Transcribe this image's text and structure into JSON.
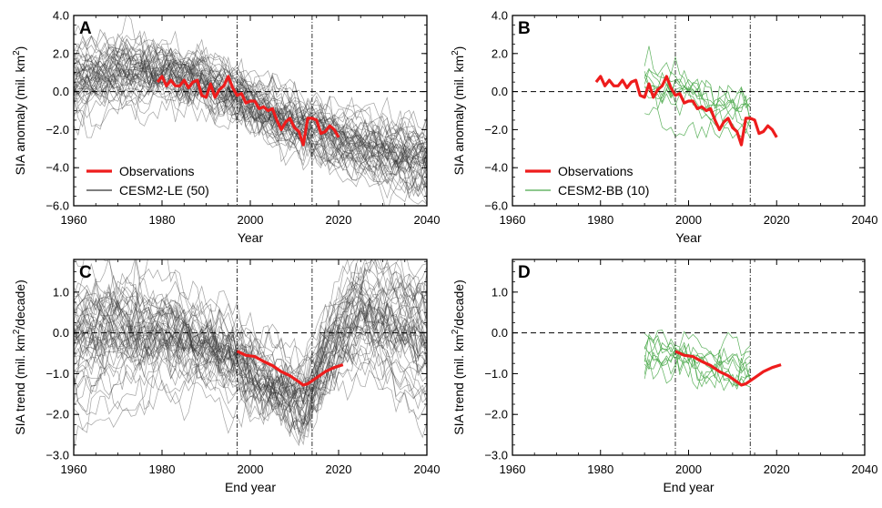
{
  "chart_data": [
    {
      "panel": "A",
      "type": "line",
      "xlabel": "Year",
      "ylabel_pre": "SIA anomaly (mil. km",
      "ylabel_sup": "2",
      "ylabel_post": ")",
      "xlim": [
        1960,
        2040
      ],
      "ylim": [
        -6.0,
        4.0
      ],
      "xticks": [
        1960,
        1980,
        2000,
        2020,
        2040
      ],
      "xtick_labels": [
        "1960",
        "1980",
        "2000",
        "2020",
        "2040"
      ],
      "yticks": [
        4.0,
        2.0,
        0.0,
        -2.0,
        -4.0,
        -6.0
      ],
      "ytick_labels": [
        "4.0",
        "2.0",
        "0.0",
        "−2.0",
        "−4.0",
        "−6.0"
      ],
      "vlines": [
        1997,
        2014
      ],
      "hline": 0,
      "legend_location": "bottom-left",
      "legend": [
        "Observations",
        "CESM2-LE (50)"
      ],
      "ensemble_color": "#333333",
      "obs_color": "#ee1c1c",
      "ensemble": {
        "name": "CESM2-LE (50)",
        "members": 50,
        "x_range": [
          1960,
          2040
        ],
        "mean": [
          [
            1960,
            0.5
          ],
          [
            1970,
            1.1
          ],
          [
            1980,
            0.9
          ],
          [
            1990,
            0.4
          ],
          [
            1995,
            0.0
          ],
          [
            2000,
            -0.8
          ],
          [
            2010,
            -1.8
          ],
          [
            2020,
            -2.6
          ],
          [
            2030,
            -3.3
          ],
          [
            2040,
            -3.8
          ]
        ],
        "spread": 1.0
      },
      "observations": {
        "name": "Observations",
        "x": [
          1979,
          1980,
          1981,
          1982,
          1983,
          1984,
          1985,
          1986,
          1987,
          1988,
          1989,
          1990,
          1991,
          1992,
          1993,
          1994,
          1995,
          1996,
          1997,
          1998,
          1999,
          2000,
          2001,
          2002,
          2003,
          2004,
          2005,
          2006,
          2007,
          2008,
          2009,
          2010,
          2011,
          2012,
          2013,
          2014,
          2015,
          2016,
          2017,
          2018,
          2019,
          2020
        ],
        "y": [
          0.5,
          0.8,
          0.3,
          0.6,
          0.3,
          0.3,
          0.6,
          0.2,
          0.5,
          0.6,
          -0.2,
          -0.3,
          0.4,
          -0.3,
          0.1,
          0.3,
          0.8,
          0.2,
          -0.2,
          -0.1,
          -0.6,
          -0.5,
          -0.5,
          -0.9,
          -0.8,
          -1.0,
          -0.9,
          -1.5,
          -2.0,
          -1.6,
          -1.4,
          -1.9,
          -2.1,
          -2.8,
          -1.4,
          -1.4,
          -1.5,
          -2.2,
          -2.1,
          -1.8,
          -2.0,
          -2.4
        ]
      }
    },
    {
      "panel": "B",
      "type": "line",
      "xlabel": "Year",
      "ylabel_pre": "SIA anomaly (mil. km",
      "ylabel_sup": "2",
      "ylabel_post": ")",
      "xlim": [
        1960,
        2040
      ],
      "ylim": [
        -6.0,
        4.0
      ],
      "xticks": [
        1960,
        1980,
        2000,
        2020,
        2040
      ],
      "xtick_labels": [
        "1960",
        "1980",
        "2000",
        "2020",
        "2040"
      ],
      "yticks": [
        4.0,
        2.0,
        0.0,
        -2.0,
        -4.0,
        -6.0
      ],
      "ytick_labels": [
        "4.0",
        "2.0",
        "0.0",
        "−2.0",
        "−4.0",
        "−6.0"
      ],
      "vlines": [
        1997,
        2014
      ],
      "hline": 0,
      "legend_location": "bottom-left",
      "legend": [
        "Observations",
        "CESM2-BB (10)"
      ],
      "ensemble_color": "#4aa84a",
      "obs_color": "#ee1c1c",
      "ensemble": {
        "name": "CESM2-BB (10)",
        "members": 10,
        "x_range": [
          1990,
          2014
        ],
        "mean": [
          [
            1990,
            0.0
          ],
          [
            1997,
            -0.3
          ],
          [
            2005,
            -1.0
          ],
          [
            2014,
            -1.8
          ]
        ],
        "spread": 0.9
      },
      "observations": {
        "name": "Observations",
        "x": [
          1979,
          1980,
          1981,
          1982,
          1983,
          1984,
          1985,
          1986,
          1987,
          1988,
          1989,
          1990,
          1991,
          1992,
          1993,
          1994,
          1995,
          1996,
          1997,
          1998,
          1999,
          2000,
          2001,
          2002,
          2003,
          2004,
          2005,
          2006,
          2007,
          2008,
          2009,
          2010,
          2011,
          2012,
          2013,
          2014,
          2015,
          2016,
          2017,
          2018,
          2019,
          2020
        ],
        "y": [
          0.5,
          0.8,
          0.3,
          0.6,
          0.3,
          0.3,
          0.6,
          0.2,
          0.5,
          0.6,
          -0.2,
          -0.3,
          0.4,
          -0.3,
          0.1,
          0.3,
          0.8,
          0.2,
          -0.2,
          -0.1,
          -0.6,
          -0.5,
          -0.5,
          -0.9,
          -0.8,
          -1.0,
          -0.9,
          -1.5,
          -2.0,
          -1.6,
          -1.4,
          -1.9,
          -2.1,
          -2.8,
          -1.4,
          -1.4,
          -1.5,
          -2.2,
          -2.1,
          -1.8,
          -2.0,
          -2.4
        ]
      }
    },
    {
      "panel": "C",
      "type": "line",
      "xlabel": "End year",
      "ylabel_pre": "SIA trend (mil. km",
      "ylabel_sup": "2",
      "ylabel_post": "/decade)",
      "xlim": [
        1960,
        2040
      ],
      "ylim": [
        -3.0,
        1.8
      ],
      "xticks": [
        1960,
        1980,
        2000,
        2020,
        2040
      ],
      "xtick_labels": [
        "1960",
        "1980",
        "2000",
        "2020",
        "2040"
      ],
      "yticks": [
        1.0,
        0.0,
        -1.0,
        -2.0,
        -3.0
      ],
      "ytick_labels": [
        "1.0",
        "0.0",
        "−1.0",
        "−2.0",
        "−3.0"
      ],
      "vlines": [
        1997,
        2014
      ],
      "hline": 0,
      "ensemble_color": "#333333",
      "obs_color": "#ee1c1c",
      "ensemble": {
        "members": 50,
        "x_range": [
          1960,
          2040
        ],
        "mean": [
          [
            1960,
            0.0
          ],
          [
            1968,
            0.25
          ],
          [
            1975,
            0.2
          ],
          [
            1985,
            -0.1
          ],
          [
            1995,
            -0.5
          ],
          [
            2005,
            -1.4
          ],
          [
            2012,
            -1.7
          ],
          [
            2020,
            -0.2
          ],
          [
            2025,
            0.3
          ],
          [
            2032,
            0.0
          ],
          [
            2040,
            -0.5
          ]
        ],
        "spread": 0.6
      },
      "observations": {
        "x": [
          1997,
          1999,
          2001,
          2003,
          2005,
          2007,
          2009,
          2011,
          2012,
          2013,
          2015,
          2017,
          2019,
          2021
        ],
        "y": [
          -0.45,
          -0.55,
          -0.58,
          -0.7,
          -0.8,
          -0.95,
          -1.05,
          -1.2,
          -1.28,
          -1.25,
          -1.1,
          -0.95,
          -0.85,
          -0.78
        ]
      }
    },
    {
      "panel": "D",
      "type": "line",
      "xlabel": "End year",
      "ylabel_pre": "SIA trend (mil. km",
      "ylabel_sup": "2",
      "ylabel_post": "/decade)",
      "xlim": [
        1960,
        2040
      ],
      "ylim": [
        -3.0,
        1.8
      ],
      "xticks": [
        1960,
        1980,
        2000,
        2020,
        2040
      ],
      "xtick_labels": [
        "1960",
        "1980",
        "2000",
        "2020",
        "2040"
      ],
      "yticks": [
        1.0,
        0.0,
        -1.0,
        -2.0,
        -3.0
      ],
      "ytick_labels": [
        "1.0",
        "0.0",
        "−1.0",
        "−2.0",
        "−3.0"
      ],
      "vlines": [
        1997,
        2014
      ],
      "hline": 0,
      "ensemble_color": "#4aa84a",
      "obs_color": "#ee1c1c",
      "ensemble": {
        "members": 10,
        "x_range": [
          1990,
          2014
        ],
        "mean": [
          [
            1990,
            -0.7
          ],
          [
            1997,
            -0.6
          ],
          [
            2005,
            -0.8
          ],
          [
            2014,
            -0.9
          ]
        ],
        "spread": 0.5
      },
      "observations": {
        "x": [
          1997,
          1999,
          2001,
          2003,
          2005,
          2007,
          2009,
          2011,
          2012,
          2013,
          2015,
          2017,
          2019,
          2021
        ],
        "y": [
          -0.45,
          -0.55,
          -0.58,
          -0.7,
          -0.8,
          -0.95,
          -1.05,
          -1.2,
          -1.28,
          -1.25,
          -1.1,
          -0.95,
          -0.85,
          -0.78
        ]
      }
    }
  ]
}
